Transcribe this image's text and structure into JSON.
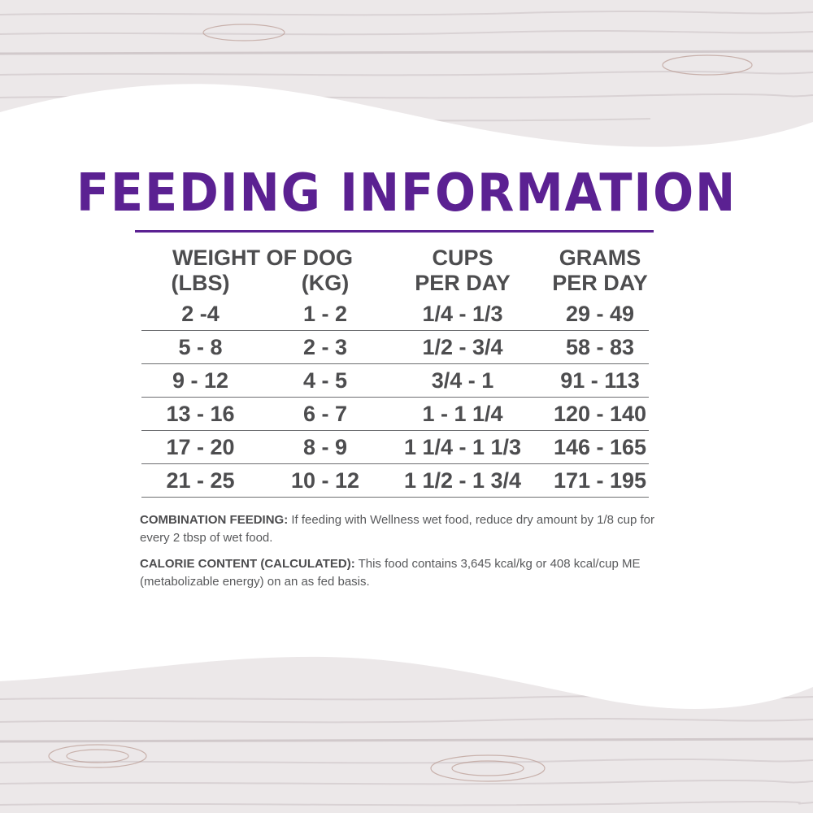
{
  "title": "FEEDING INFORMATION",
  "table": {
    "headers": {
      "weight": "WEIGHT OF DOG",
      "lbs": "(LBS)",
      "kg": "(KG)",
      "cups_line1": "CUPS",
      "cups_line2": "PER DAY",
      "grams_line1": "GRAMS",
      "grams_line2": "PER DAY"
    },
    "rows": [
      {
        "lbs": "2 -4",
        "kg": "1 - 2",
        "cups": "1/4 - 1/3",
        "grams": "29 - 49"
      },
      {
        "lbs": "5 - 8",
        "kg": "2 - 3",
        "cups": "1/2 - 3/4",
        "grams": "58 - 83"
      },
      {
        "lbs": "9 - 12",
        "kg": "4 - 5",
        "cups": "3/4 - 1",
        "grams": "91 - 113"
      },
      {
        "lbs": "13 - 16",
        "kg": "6 - 7",
        "cups": "1 - 1 1/4",
        "grams": "120 - 140"
      },
      {
        "lbs": "17 - 20",
        "kg": "8 - 9",
        "cups": "1 1/4 - 1 1/3",
        "grams": "146 - 165"
      },
      {
        "lbs": "21 - 25",
        "kg": "10 - 12",
        "cups": "1 1/2 - 1 3/4",
        "grams": "171 - 195"
      }
    ]
  },
  "notes": {
    "combination_label": "COMBINATION FEEDING:",
    "combination_text": " If feeding with Wellness wet food, reduce dry amount by 1/8 cup for every 2 tbsp of wet food.",
    "calorie_label": "CALORIE CONTENT (CALCULATED):",
    "calorie_text": " This food contains 3,645 kcal/kg or 408 kcal/cup ME (metabolizable energy) on an as fed basis."
  },
  "colors": {
    "title": "#5b2192",
    "text": "#4d4d4f",
    "wood": "#ece8e9",
    "panel": "#ffffff"
  }
}
